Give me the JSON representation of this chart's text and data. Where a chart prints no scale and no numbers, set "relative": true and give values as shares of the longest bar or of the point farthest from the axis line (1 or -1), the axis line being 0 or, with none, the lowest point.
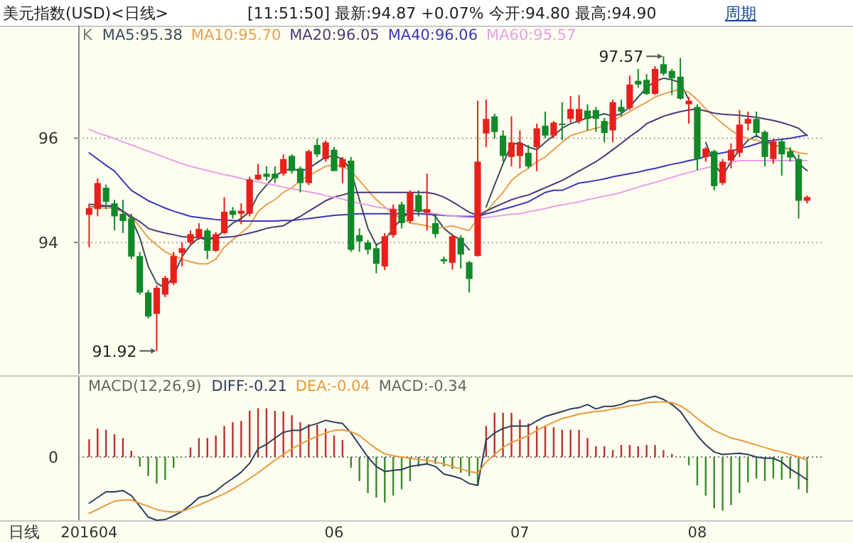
{
  "chart_data": [
    {
      "type": "candlestick",
      "title": "美元指数(USD)<日线>",
      "subtitle": "[11:51:50] 最新:94.87 +0.07% 今开:94.80 最高:94.90",
      "categories": [
        null,
        null,
        null,
        null,
        null,
        null,
        null,
        null,
        null,
        null,
        null,
        null,
        null,
        null,
        null,
        null,
        null,
        null,
        null,
        null,
        null,
        null,
        null,
        null,
        null,
        null,
        null,
        null,
        null,
        null,
        null,
        null,
        null,
        null,
        null,
        null,
        null,
        null,
        null,
        null,
        null,
        null,
        null,
        null,
        null,
        null,
        null,
        null,
        null,
        null,
        null,
        null,
        null,
        null,
        null,
        null,
        null,
        null,
        null,
        null,
        null,
        null,
        null,
        null,
        null,
        null,
        null,
        null,
        null,
        null,
        null,
        null,
        null,
        null,
        null,
        null,
        null,
        null,
        null,
        null,
        null,
        null,
        null,
        null,
        null,
        null
      ],
      "ohlc": [
        [
          94.53,
          94.73,
          93.91,
          94.66
        ],
        [
          94.64,
          95.23,
          94.5,
          95.14
        ],
        [
          95.05,
          95.11,
          94.64,
          94.78
        ],
        [
          94.75,
          94.82,
          94.23,
          94.5
        ],
        [
          94.55,
          94.82,
          94.18,
          94.41
        ],
        [
          94.46,
          94.55,
          93.68,
          93.73
        ],
        [
          93.74,
          93.82,
          93.0,
          93.04
        ],
        [
          93.04,
          93.09,
          92.54,
          92.58
        ],
        [
          92.63,
          93.18,
          91.92,
          93.13
        ],
        [
          93.0,
          93.36,
          92.95,
          93.32
        ],
        [
          93.22,
          93.82,
          93.18,
          93.74
        ],
        [
          93.8,
          94.0,
          93.54,
          93.89
        ],
        [
          94.0,
          94.23,
          93.95,
          94.16
        ],
        [
          94.09,
          94.37,
          94.05,
          94.26
        ],
        [
          94.23,
          94.27,
          93.68,
          93.84
        ],
        [
          93.84,
          94.2,
          93.82,
          94.16
        ],
        [
          94.18,
          94.87,
          94.16,
          94.59
        ],
        [
          94.61,
          94.68,
          94.46,
          94.53
        ],
        [
          94.55,
          94.75,
          94.35,
          94.61
        ],
        [
          94.55,
          95.26,
          94.5,
          95.21
        ],
        [
          95.21,
          95.51,
          95.19,
          95.3
        ],
        [
          95.32,
          95.46,
          95.19,
          95.26
        ],
        [
          95.32,
          95.46,
          95.14,
          95.23
        ],
        [
          95.32,
          95.69,
          95.28,
          95.6
        ],
        [
          95.66,
          95.69,
          95.32,
          95.37
        ],
        [
          95.42,
          95.46,
          94.96,
          95.14
        ],
        [
          95.14,
          95.78,
          95.1,
          95.75
        ],
        [
          95.87,
          95.99,
          95.64,
          95.69
        ],
        [
          95.6,
          95.96,
          95.55,
          95.92
        ],
        [
          95.78,
          95.83,
          95.37,
          95.37
        ],
        [
          95.44,
          95.64,
          95.14,
          95.6
        ],
        [
          95.57,
          95.64,
          93.82,
          93.86
        ],
        [
          94.14,
          94.27,
          93.82,
          94.02
        ],
        [
          94.0,
          94.05,
          93.77,
          93.86
        ],
        [
          93.89,
          93.95,
          93.41,
          93.59
        ],
        [
          93.54,
          94.18,
          93.47,
          94.12
        ],
        [
          94.14,
          94.73,
          94.09,
          94.64
        ],
        [
          94.73,
          94.78,
          94.27,
          94.37
        ],
        [
          94.41,
          95.0,
          94.37,
          94.96
        ],
        [
          94.91,
          95.0,
          94.5,
          94.59
        ],
        [
          94.57,
          95.32,
          94.23,
          94.64
        ],
        [
          94.37,
          94.55,
          94.09,
          94.16
        ],
        [
          93.68,
          93.73,
          93.59,
          93.64
        ],
        [
          93.61,
          94.16,
          93.48,
          94.12
        ],
        [
          94.09,
          94.14,
          93.5,
          93.77
        ],
        [
          93.62,
          93.65,
          93.04,
          93.3
        ],
        [
          93.74,
          96.72,
          93.73,
          95.55
        ],
        [
          96.09,
          96.74,
          95.83,
          96.37
        ],
        [
          96.42,
          96.47,
          95.99,
          96.12
        ],
        [
          96.05,
          96.15,
          95.55,
          95.66
        ],
        [
          95.64,
          96.42,
          95.46,
          95.92
        ],
        [
          95.66,
          96.15,
          95.42,
          95.9
        ],
        [
          95.72,
          95.87,
          95.42,
          95.46
        ],
        [
          95.83,
          96.28,
          95.37,
          96.19
        ],
        [
          96.24,
          96.51,
          96.0,
          96.05
        ],
        [
          96.05,
          96.33,
          96.0,
          96.3
        ],
        [
          96.28,
          96.69,
          95.96,
          96.26
        ],
        [
          96.37,
          96.81,
          96.3,
          96.56
        ],
        [
          96.33,
          96.83,
          96.28,
          96.56
        ],
        [
          96.53,
          96.65,
          96.15,
          96.37
        ],
        [
          96.54,
          96.6,
          96.12,
          96.37
        ],
        [
          96.33,
          96.39,
          95.92,
          96.1
        ],
        [
          96.15,
          96.74,
          95.92,
          96.69
        ],
        [
          96.6,
          96.74,
          96.42,
          96.51
        ],
        [
          96.58,
          97.2,
          96.54,
          97.03
        ],
        [
          97.1,
          97.33,
          96.97,
          97.03
        ],
        [
          97.12,
          97.23,
          96.83,
          96.85
        ],
        [
          96.85,
          97.38,
          96.83,
          97.33
        ],
        [
          97.42,
          97.57,
          97.2,
          97.24
        ],
        [
          97.29,
          97.33,
          96.83,
          97.15
        ],
        [
          97.18,
          97.54,
          96.74,
          96.76
        ],
        [
          96.65,
          96.79,
          96.28,
          96.72
        ],
        [
          96.6,
          96.65,
          95.39,
          95.6
        ],
        [
          95.64,
          95.83,
          95.55,
          95.8
        ],
        [
          95.75,
          95.78,
          95.0,
          95.08
        ],
        [
          95.14,
          95.6,
          95.1,
          95.55
        ],
        [
          95.57,
          95.9,
          95.42,
          95.78
        ],
        [
          95.72,
          96.54,
          95.64,
          96.26
        ],
        [
          96.28,
          96.51,
          96.15,
          96.37
        ],
        [
          96.37,
          96.51,
          96.05,
          96.1
        ],
        [
          96.12,
          96.15,
          95.46,
          95.64
        ],
        [
          95.6,
          95.99,
          95.51,
          95.94
        ],
        [
          95.94,
          95.99,
          95.28,
          95.69
        ],
        [
          95.75,
          95.83,
          95.55,
          95.63
        ],
        [
          95.6,
          95.69,
          94.46,
          94.8
        ],
        [
          94.8,
          94.9,
          94.75,
          94.87
        ]
      ],
      "series": [
        {
          "name": "MA5:95.38",
          "type": "line",
          "color": "#3a4a5e",
          "values": [
            94.68,
            94.69,
            94.7,
            94.71,
            94.6,
            94.46,
            94.09,
            93.54,
            93.22,
            93.13,
            93.36,
            93.73,
            93.95,
            94.09,
            94.05,
            94.09,
            94.23,
            94.37,
            94.46,
            94.59,
            94.91,
            95.1,
            95.28,
            95.37,
            95.42,
            95.37,
            95.42,
            95.53,
            95.64,
            95.66,
            95.6,
            95.37,
            94.82,
            94.27,
            93.95,
            94.05,
            94.27,
            94.46,
            94.59,
            94.64,
            94.59,
            94.5,
            94.27,
            94.14,
            94.05,
            93.86,
            null,
            94.68,
            95.1,
            95.51,
            95.87,
            95.92,
            95.83,
            95.78,
            95.92,
            96.05,
            96.19,
            96.28,
            96.33,
            96.39,
            96.42,
            96.47,
            96.42,
            96.47,
            96.6,
            96.79,
            96.97,
            97.09,
            97.15,
            97.12,
            97.06,
            96.74,
            null,
            95.92,
            95.51,
            95.28,
            95.55,
            95.78,
            95.96,
            96.05,
            95.96,
            95.87,
            95.83,
            95.78,
            95.51,
            95.38
          ]
        },
        {
          "name": "MA10:95.70",
          "type": "line",
          "color": "#e8a050",
          "values": [
            94.68,
            94.67,
            94.66,
            94.66,
            94.58,
            94.5,
            94.3,
            94.09,
            93.95,
            93.82,
            93.75,
            93.68,
            93.63,
            93.59,
            93.59,
            93.68,
            93.91,
            94.05,
            94.18,
            94.32,
            94.59,
            94.73,
            94.82,
            94.96,
            95.05,
            95.19,
            95.28,
            95.37,
            95.46,
            95.49,
            95.46,
            95.37,
            95.19,
            95.0,
            94.82,
            94.68,
            94.55,
            94.46,
            94.37,
            94.35,
            94.32,
            94.27,
            94.29,
            94.32,
            94.27,
            94.23,
            94.46,
            94.59,
            94.78,
            94.96,
            95.19,
            95.32,
            95.42,
            95.55,
            95.64,
            95.78,
            95.92,
            96.05,
            96.1,
            96.15,
            96.19,
            96.24,
            96.33,
            96.42,
            96.51,
            96.6,
            96.69,
            96.79,
            96.85,
            96.9,
            96.94,
            96.88,
            96.74,
            96.56,
            96.42,
            96.28,
            96.15,
            96.05,
            95.99,
            95.96,
            95.92,
            95.87,
            95.83,
            95.78,
            95.72,
            95.7
          ]
        },
        {
          "name": "MA20:96.05",
          "type": "line",
          "color": "#4a3a7a",
          "values": [
            94.73,
            94.72,
            94.7,
            94.68,
            94.6,
            94.5,
            94.4,
            94.27,
            94.22,
            94.18,
            94.15,
            94.11,
            94.1,
            94.09,
            94.09,
            94.09,
            94.1,
            94.11,
            94.14,
            94.18,
            94.22,
            94.27,
            94.3,
            94.32,
            94.42,
            94.5,
            94.6,
            94.7,
            94.8,
            94.87,
            94.91,
            94.96,
            94.96,
            94.96,
            94.96,
            94.96,
            94.96,
            94.96,
            94.96,
            94.96,
            94.96,
            94.93,
            94.87,
            94.78,
            94.68,
            94.58,
            94.52,
            94.6,
            94.68,
            94.75,
            94.82,
            94.87,
            94.91,
            94.98,
            95.05,
            95.12,
            95.19,
            95.28,
            95.37,
            95.46,
            95.55,
            95.66,
            95.78,
            95.9,
            96.03,
            96.14,
            96.28,
            96.35,
            96.42,
            96.47,
            96.51,
            96.54,
            96.56,
            96.52,
            96.48,
            96.46,
            96.45,
            96.44,
            96.42,
            96.4,
            96.37,
            96.34,
            96.3,
            96.25,
            96.19,
            96.05
          ]
        },
        {
          "name": "MA40:96.06",
          "type": "line",
          "color": "#3838b8",
          "values": [
            95.72,
            95.6,
            95.48,
            95.37,
            95.18,
            95.0,
            94.9,
            94.8,
            94.73,
            94.66,
            94.6,
            94.55,
            94.5,
            94.48,
            94.46,
            94.44,
            94.43,
            94.42,
            94.41,
            94.41,
            94.41,
            94.41,
            94.41,
            94.42,
            94.42,
            94.44,
            94.46,
            94.48,
            94.5,
            94.52,
            94.53,
            94.54,
            94.55,
            94.55,
            94.55,
            94.55,
            94.55,
            94.55,
            94.55,
            94.55,
            94.54,
            94.53,
            94.52,
            94.51,
            94.5,
            94.5,
            94.5,
            94.55,
            94.59,
            94.64,
            94.68,
            94.73,
            94.78,
            94.87,
            94.96,
            95.0,
            95.0,
            95.07,
            95.14,
            95.16,
            95.19,
            95.22,
            95.26,
            95.29,
            95.32,
            95.35,
            95.39,
            95.42,
            95.46,
            95.5,
            95.53,
            95.57,
            95.6,
            95.65,
            95.69,
            95.72,
            95.75,
            95.8,
            95.84,
            95.89,
            95.94,
            95.96,
            95.98,
            96.0,
            96.03,
            96.06
          ]
        },
        {
          "name": "MA60:95.57",
          "type": "line",
          "color": "#e8a0e8",
          "values": [
            96.17,
            96.1,
            96.05,
            95.99,
            95.93,
            95.87,
            95.81,
            95.75,
            95.69,
            95.63,
            95.57,
            95.51,
            95.46,
            95.42,
            95.38,
            95.34,
            95.3,
            95.27,
            95.23,
            95.19,
            95.16,
            95.13,
            95.1,
            95.06,
            95.03,
            95.0,
            94.97,
            94.94,
            94.9,
            94.87,
            94.83,
            94.79,
            94.75,
            94.72,
            94.68,
            94.66,
            94.64,
            94.62,
            94.6,
            94.59,
            94.57,
            94.55,
            94.53,
            94.51,
            94.49,
            94.48,
            94.47,
            94.48,
            94.5,
            94.52,
            94.54,
            94.55,
            94.59,
            94.62,
            94.65,
            94.69,
            94.72,
            94.75,
            94.78,
            94.82,
            94.85,
            94.89,
            94.92,
            94.96,
            95.01,
            95.06,
            95.11,
            95.15,
            95.2,
            95.25,
            95.3,
            95.34,
            95.39,
            95.43,
            95.47,
            95.5,
            95.54,
            95.57,
            95.57,
            95.57,
            95.57,
            95.57,
            95.57,
            95.57,
            95.57,
            95.57
          ]
        }
      ],
      "ylim": [
        91.48,
        98.16
      ],
      "yticks": [
        94,
        96
      ],
      "grid": "y",
      "legend": "top left",
      "tick_labels": "y",
      "annotations": [
        "K",
        "周期",
        "97.57",
        "91.92"
      ]
    },
    {
      "type": "bar",
      "relative": true,
      "legend_title": "MACD(12,26,9)",
      "categories": [
        "201604",
        null,
        null,
        null,
        null,
        null,
        null,
        null,
        null,
        null,
        null,
        null,
        null,
        null,
        null,
        null,
        null,
        null,
        null,
        null,
        null,
        null,
        null,
        null,
        null,
        null,
        null,
        null,
        null,
        "06",
        null,
        null,
        null,
        null,
        null,
        null,
        null,
        null,
        null,
        null,
        null,
        null,
        null,
        null,
        null,
        null,
        null,
        null,
        null,
        null,
        null,
        "07",
        null,
        null,
        null,
        null,
        null,
        null,
        null,
        null,
        null,
        null,
        null,
        null,
        null,
        null,
        null,
        null,
        null,
        null,
        null,
        null,
        "08",
        null,
        null,
        null,
        null,
        null,
        null,
        null,
        null,
        null,
        null,
        null,
        null,
        null
      ],
      "series": [
        {
          "name": "DIFF:-0.21",
          "type": "line",
          "color": "#2e3e5e",
          "values": [
            -0.73,
            -0.64,
            -0.55,
            -0.55,
            -0.53,
            -0.61,
            -0.78,
            -0.95,
            -1.0,
            -0.99,
            -0.93,
            -0.86,
            -0.76,
            -0.64,
            -0.61,
            -0.54,
            -0.43,
            -0.34,
            -0.24,
            -0.1,
            0.13,
            0.2,
            0.3,
            0.39,
            0.42,
            0.42,
            0.49,
            0.53,
            0.58,
            0.55,
            0.53,
            0.38,
            0.19,
            0,
            -0.15,
            -0.23,
            -0.21,
            -0.2,
            -0.15,
            -0.13,
            -0.11,
            -0.15,
            -0.27,
            -0.3,
            -0.34,
            -0.42,
            -0.45,
            0.27,
            0.38,
            0.45,
            0.49,
            0.49,
            0.49,
            0.57,
            0.64,
            0.68,
            0.72,
            0.76,
            0.78,
            0.83,
            0.76,
            0.8,
            0.8,
            0.83,
            0.89,
            0.89,
            0.93,
            0.96,
            0.91,
            0.83,
            0.72,
            0.53,
            0.34,
            0.19,
            0.08,
            0.04,
            0.05,
            0.06,
            0.04,
            0,
            -0.02,
            -0.02,
            -0.08,
            -0.19,
            -0.27,
            -0.36
          ]
        },
        {
          "name": "DEA:-0.04",
          "type": "line",
          "color": "#e89a3c",
          "values": [
            -0.89,
            -0.83,
            -0.76,
            -0.7,
            -0.68,
            -0.68,
            -0.73,
            -0.78,
            -0.83,
            -0.86,
            -0.87,
            -0.86,
            -0.81,
            -0.76,
            -0.7,
            -0.64,
            -0.58,
            -0.51,
            -0.43,
            -0.34,
            -0.25,
            -0.15,
            -0.05,
            0.04,
            0.13,
            0.2,
            0.27,
            0.33,
            0.38,
            0.42,
            0.43,
            0.4,
            0.34,
            0.23,
            0.13,
            0.05,
            0.02,
            0,
            -0.02,
            -0.04,
            -0.05,
            -0.08,
            -0.11,
            -0.15,
            -0.19,
            -0.23,
            -0.25,
            -0.08,
            0.04,
            0.15,
            0.23,
            0.28,
            0.34,
            0.42,
            0.49,
            0.55,
            0.61,
            0.64,
            0.68,
            0.7,
            0.72,
            0.73,
            0.76,
            0.78,
            0.81,
            0.83,
            0.86,
            0.87,
            0.87,
            0.86,
            0.81,
            0.72,
            0.61,
            0.51,
            0.42,
            0.36,
            0.3,
            0.27,
            0.23,
            0.19,
            0.15,
            0.11,
            0.08,
            0.04,
            0,
            -0.05
          ]
        },
        {
          "name": "MACD:-0.34",
          "type": "bar",
          "colors": [
            "#b83232",
            "#b83232",
            "#b83232",
            "#b83232",
            "#b83232",
            "#b83232",
            "#3a8a2e",
            "#3a8a2e",
            "#3a8a2e",
            "#3a8a2e",
            "#3a8a2e",
            "#b83232",
            "#b83232",
            "#b83232",
            "#b83232",
            "#b83232",
            "#b83232",
            "#b83232",
            "#b83232",
            "#b83232",
            "#b83232",
            "#b83232",
            "#b83232",
            "#b83232",
            "#b83232",
            "#b83232",
            "#b83232",
            "#b83232",
            "#b83232",
            "#b83232",
            "#b83232",
            "#3a8a2e",
            "#3a8a2e",
            "#3a8a2e",
            "#3a8a2e",
            "#3a8a2e",
            "#3a8a2e",
            "#3a8a2e",
            "#3a8a2e",
            "#3a8a2e",
            "#3a8a2e",
            "#3a8a2e",
            "#3a8a2e",
            "#3a8a2e",
            "#3a8a2e",
            "#3a8a2e",
            "#3a8a2e",
            "#b83232",
            "#b83232",
            "#b83232",
            "#b83232",
            "#b83232",
            "#b83232",
            "#b83232",
            "#b83232",
            "#b83232",
            "#b83232",
            "#b83232",
            "#b83232",
            "#b83232",
            "#b83232",
            "#b83232",
            "#b83232",
            "#b83232",
            "#b83232",
            "#b83232",
            "#b83232",
            "#b83232",
            "#b83232",
            "#b83232",
            "#b83232",
            "#3a8a2e",
            "#3a8a2e",
            "#3a8a2e",
            "#3a8a2e",
            "#3a8a2e",
            "#3a8a2e",
            "#3a8a2e",
            "#3a8a2e",
            "#3a8a2e",
            "#3a8a2e",
            "#3a8a2e",
            "#3a8a2e",
            "#3a8a2e",
            "#3a8a2e",
            "#3a8a2e"
          ],
          "values": [
            0.28,
            0.45,
            0.43,
            0.36,
            0.3,
            0.1,
            -0.15,
            -0.3,
            -0.42,
            -0.36,
            -0.17,
            0,
            0.15,
            0.3,
            0.3,
            0.34,
            0.49,
            0.55,
            0.57,
            0.73,
            0.77,
            0.77,
            0.73,
            0.72,
            0.66,
            0.55,
            0.52,
            0.51,
            0.45,
            0.34,
            0.27,
            -0.17,
            -0.38,
            -0.57,
            -0.64,
            -0.72,
            -0.61,
            -0.51,
            -0.38,
            -0.15,
            -0.11,
            -0.11,
            -0.15,
            -0.19,
            -0.25,
            -0.3,
            -0.45,
            0.49,
            0.7,
            0.7,
            0.7,
            0.59,
            0.53,
            0.49,
            0.49,
            0.47,
            0.43,
            0.43,
            0.43,
            0.3,
            0.17,
            0.17,
            0.11,
            0.19,
            0.19,
            0.17,
            0.19,
            0.19,
            0.11,
            0.05,
            0,
            -0.13,
            -0.45,
            -0.61,
            -0.81,
            -0.85,
            -0.76,
            -0.57,
            -0.4,
            -0.34,
            -0.38,
            -0.34,
            -0.36,
            -0.34,
            -0.51,
            -0.57
          ]
        }
      ],
      "legend": "top left",
      "tick_labels": "x",
      "ref_lines": [
        {
          "axis": "y",
          "value": 0,
          "color": "#777777",
          "line_style": "dotted"
        }
      ],
      "annotations": [
        "0",
        "日线"
      ]
    }
  ]
}
